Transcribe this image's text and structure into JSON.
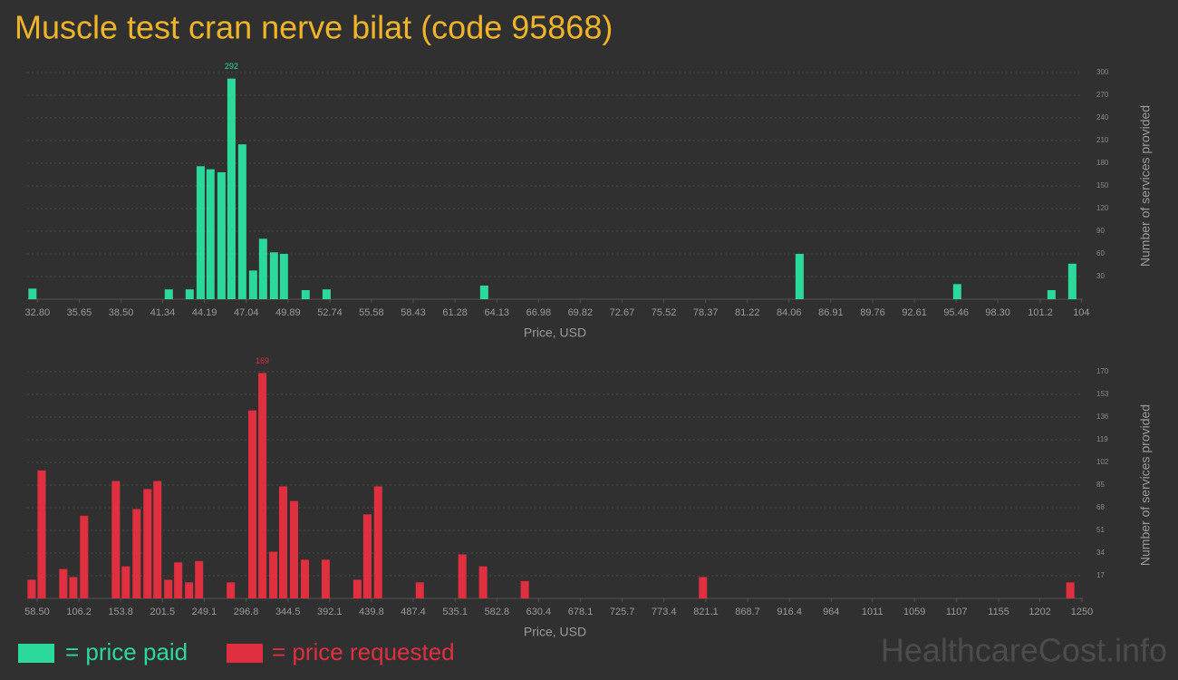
{
  "title": "Muscle test cran nerve bilat (code 95868)",
  "watermark": "HealthcareCost.info",
  "chart_data": [
    {
      "type": "bar",
      "x": [
        32.46,
        41.76,
        43.18,
        43.93,
        44.6,
        45.35,
        46.03,
        46.77,
        47.51,
        48.19,
        48.93,
        49.61,
        51.09,
        52.52,
        63.27,
        84.78,
        95.53,
        101.96,
        103.38
      ],
      "series": [
        {
          "name": "= price paid",
          "color": "#2bd99b",
          "values": [
            14,
            13,
            13,
            176,
            172,
            168,
            292,
            205,
            38,
            80,
            62,
            60,
            12,
            13,
            18,
            60,
            20,
            12,
            47
          ]
        }
      ],
      "xlim": [
        32.1,
        104.1
      ],
      "xticks": [
        {
          "value": 32.8,
          "label": "32.80"
        },
        35.65,
        {
          "value": 38.5,
          "label": "38.50"
        },
        41.34,
        44.19,
        47.04,
        49.89,
        52.74,
        55.58,
        58.43,
        61.28,
        64.13,
        66.98,
        69.82,
        72.67,
        75.52,
        78.37,
        81.22,
        84.06,
        86.91,
        89.76,
        92.61,
        95.46,
        {
          "value": 98.3,
          "label": "98.30"
        },
        101.2,
        104
      ],
      "ylim": [
        0,
        300
      ],
      "yticks": [
        30,
        60,
        90,
        120,
        150,
        180,
        210,
        240,
        270,
        300
      ],
      "xlabel": "Price, USD",
      "ylabel": "Number of services provided",
      "grid": true
    },
    {
      "type": "bar",
      "x": [
        52.3,
        63.7,
        88.4,
        99.8,
        112.1,
        148.3,
        159.6,
        172,
        184.4,
        195.7,
        208.1,
        219.4,
        231.8,
        243.2,
        279.3,
        304,
        315.4,
        327.8,
        339.1,
        351.5,
        363.9,
        387.6,
        423.7,
        435.1,
        447.4,
        494.9,
        543.4,
        567.1,
        614.6,
        817.8,
        1236.7
      ],
      "series": [
        {
          "name": "= price requested",
          "color": "#e0303f",
          "values": [
            14,
            96,
            22,
            16,
            62,
            88,
            24,
            67,
            82,
            88,
            14,
            27,
            12,
            28,
            12,
            141,
            169,
            35,
            84,
            73,
            29,
            29,
            14,
            63,
            84,
            12,
            33,
            24,
            13,
            16,
            12
          ]
        }
      ],
      "xlim": [
        47.2,
        1251
      ],
      "xticks": [
        {
          "value": 58.5,
          "label": "58.50"
        },
        106.2,
        153.8,
        201.5,
        249.1,
        296.8,
        344.5,
        392.1,
        439.8,
        487.4,
        535.1,
        582.8,
        630.4,
        678.1,
        725.7,
        773.4,
        821.1,
        868.7,
        916.4,
        964,
        1011,
        1059,
        1107,
        1155,
        1202,
        1250
      ],
      "ylim": [
        0,
        170
      ],
      "yticks": [
        17,
        34,
        51,
        68,
        85,
        102,
        119,
        136,
        153,
        170
      ],
      "xlabel": "Price, USD",
      "ylabel": "Number of services provided",
      "grid": true
    }
  ]
}
